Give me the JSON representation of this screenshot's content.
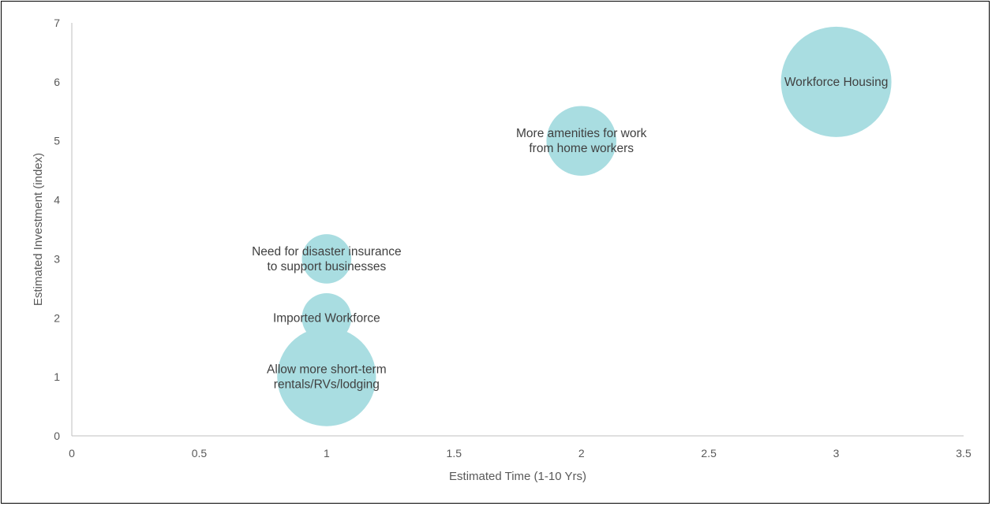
{
  "chart_data": {
    "type": "bubble",
    "title": "",
    "xlabel": "Estimated Time (1-10 Yrs)",
    "ylabel": "Estimated Investment (index)",
    "xlim": [
      0,
      3.5
    ],
    "ylim": [
      0,
      7
    ],
    "xticks": [
      "0",
      "0.5",
      "1",
      "1.5",
      "2",
      "2.5",
      "3",
      "3.5"
    ],
    "yticks": [
      "0",
      "1",
      "2",
      "3",
      "4",
      "5",
      "6",
      "7"
    ],
    "grid": false,
    "legend": "none",
    "bubble_color": "#a9dde1",
    "axis_color": "#bfbfbf",
    "points": [
      {
        "x": 1,
        "y": 1,
        "size": 4,
        "label_lines": [
          "Allow more short-term",
          "rentals/RVs/lodging"
        ]
      },
      {
        "x": 1,
        "y": 2,
        "size": 1,
        "label_lines": [
          "Imported Workforce"
        ]
      },
      {
        "x": 1,
        "y": 3,
        "size": 1,
        "label_lines": [
          "Need for disaster insurance",
          "to support businesses"
        ]
      },
      {
        "x": 2,
        "y": 5,
        "size": 2,
        "label_lines": [
          "More amenities for work",
          "from home workers"
        ]
      },
      {
        "x": 3,
        "y": 6,
        "size": 5,
        "label_lines": [
          "Workforce Housing"
        ]
      }
    ]
  }
}
